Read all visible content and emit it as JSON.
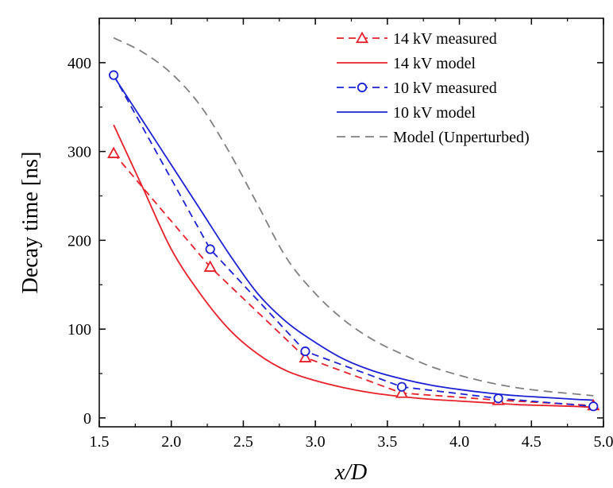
{
  "chart_data": {
    "type": "line",
    "xlabel": "x/D",
    "ylabel": "Decay time [ns]",
    "xlim": [
      1.5,
      5.0
    ],
    "ylim": [
      -10,
      450
    ],
    "x_ticks": [
      1.5,
      2.0,
      2.5,
      3.0,
      3.5,
      4.0,
      4.5,
      5.0
    ],
    "x_tick_labels": [
      "1.5",
      "2.0",
      "2.5",
      "3.0",
      "3.5",
      "4.0",
      "4.5",
      "5.0"
    ],
    "y_ticks": [
      0,
      100,
      200,
      300,
      400
    ],
    "y_tick_labels": [
      "0",
      "100",
      "200",
      "300",
      "400"
    ],
    "grid": false,
    "legend_position": "top-right",
    "series": [
      {
        "name": "14 kV measured",
        "kind": "measured",
        "color": "#e8202a",
        "dash": "dashed",
        "marker": "triangle",
        "x": [
          1.6,
          2.27,
          2.93,
          3.6,
          4.27,
          4.93
        ],
        "y": [
          298,
          170,
          68,
          28,
          20,
          14
        ]
      },
      {
        "name": "14 kV model",
        "kind": "model",
        "color": "#e8202a",
        "dash": "solid",
        "marker": "none",
        "x": [
          1.6,
          1.8,
          2.0,
          2.2,
          2.4,
          2.6,
          2.8,
          3.0,
          3.2,
          3.4,
          3.6,
          3.8,
          4.0,
          4.2,
          4.4,
          4.6,
          4.8,
          4.93
        ],
        "y": [
          330,
          260,
          190,
          140,
          100,
          72,
          53,
          42,
          34,
          28,
          24,
          21,
          19,
          17,
          15,
          14,
          13,
          12
        ]
      },
      {
        "name": "10 kV measured",
        "kind": "measured",
        "color": "#1c22d4",
        "dash": "dashed",
        "marker": "circle",
        "x": [
          1.6,
          2.27,
          2.93,
          3.6,
          4.27,
          4.93
        ],
        "y": [
          386,
          190,
          75,
          35,
          22,
          13
        ]
      },
      {
        "name": "10 kV model",
        "kind": "model",
        "color": "#1c22d4",
        "dash": "solid",
        "marker": "none",
        "x": [
          1.6,
          1.8,
          2.0,
          2.2,
          2.4,
          2.6,
          2.8,
          3.0,
          3.2,
          3.4,
          3.6,
          3.8,
          4.0,
          4.2,
          4.4,
          4.6,
          4.8,
          4.93
        ],
        "y": [
          385,
          335,
          285,
          235,
          185,
          140,
          108,
          85,
          66,
          53,
          44,
          37,
          32,
          28,
          25,
          23,
          21,
          20
        ]
      },
      {
        "name": "Model (Unperturbed)",
        "kind": "model",
        "color": "#808080",
        "dash": "dashed",
        "marker": "none",
        "x": [
          1.6,
          1.8,
          2.0,
          2.2,
          2.4,
          2.6,
          2.8,
          3.0,
          3.2,
          3.4,
          3.6,
          3.8,
          4.0,
          4.2,
          4.4,
          4.6,
          4.8,
          4.93
        ],
        "y": [
          428,
          412,
          388,
          352,
          300,
          240,
          180,
          140,
          110,
          88,
          72,
          58,
          48,
          40,
          34,
          30,
          27,
          25
        ]
      }
    ]
  }
}
